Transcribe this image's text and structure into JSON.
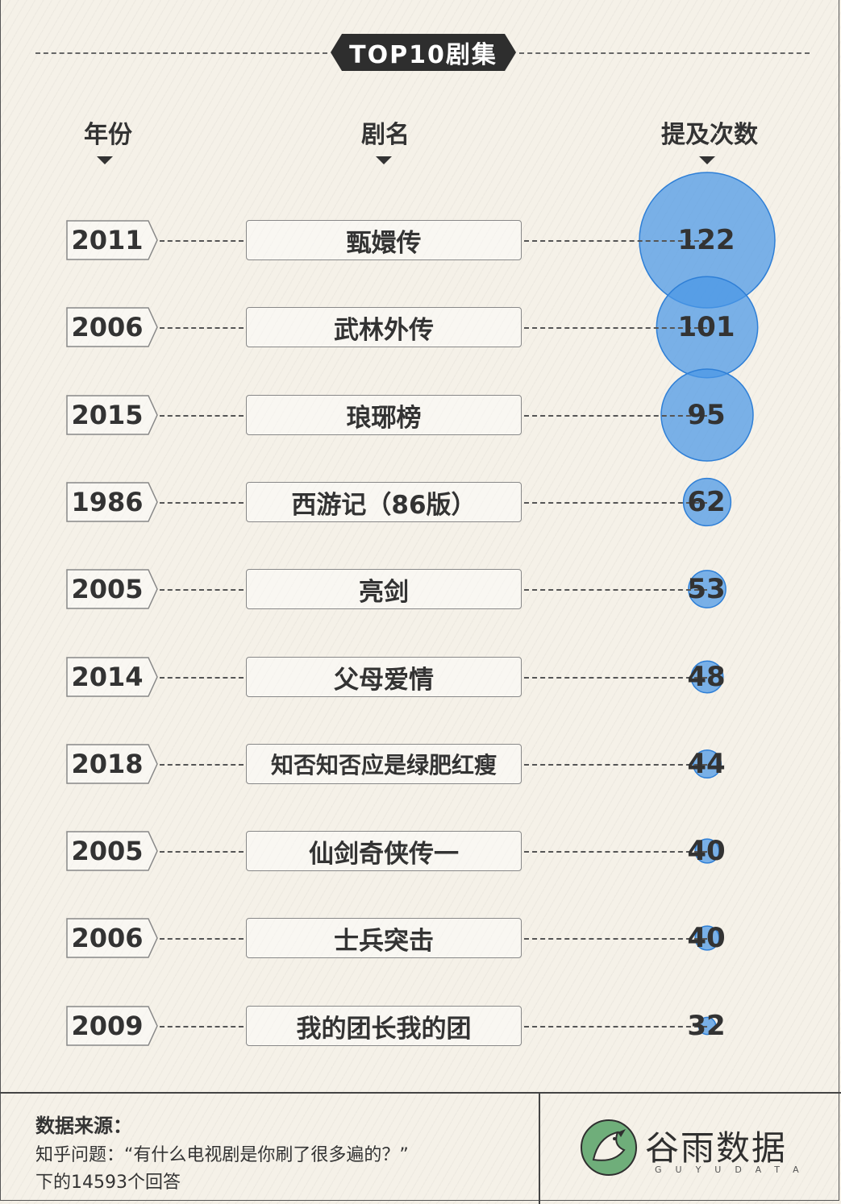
{
  "title": "TOP10剧集",
  "headers": {
    "year": "年份",
    "name": "剧名",
    "count": "提及次数"
  },
  "chart_data": {
    "type": "bubble",
    "title": "TOP10剧集",
    "columns": [
      "年份",
      "剧名",
      "提及次数"
    ],
    "rows": [
      {
        "year": "2011",
        "name": "甄嬛传",
        "count": 122
      },
      {
        "year": "2006",
        "name": "武林外传",
        "count": 101
      },
      {
        "year": "2015",
        "name": "琅琊榜",
        "count": 95
      },
      {
        "year": "1986",
        "name": "西游记（86版）",
        "count": 62
      },
      {
        "year": "2005",
        "name": "亮剑",
        "count": 53
      },
      {
        "year": "2014",
        "name": "父母爱情",
        "count": 48
      },
      {
        "year": "2018",
        "name": "知否知否应是绿肥红瘦",
        "count": 44
      },
      {
        "year": "2005",
        "name": "仙剑奇侠传一",
        "count": 40
      },
      {
        "year": "2006",
        "name": "士兵突击",
        "count": 40
      },
      {
        "year": "2009",
        "name": "我的团长我的团",
        "count": 32
      }
    ]
  },
  "colors": {
    "bubble_fill": "#4a97e6",
    "bubble_stroke": "#2f7fd6",
    "badge": "#2e2e2e",
    "logo_green": "#6fae7a"
  },
  "footer": {
    "source_label": "数据来源：",
    "source_line1": "知乎问题：“有什么电视剧是你刷了很多遍的？”",
    "source_line2": "下的14593个回答",
    "logo_name": "谷雨数据",
    "logo_sub": "GUYUDATA",
    "logo_icon": "bird-logo-icon"
  }
}
